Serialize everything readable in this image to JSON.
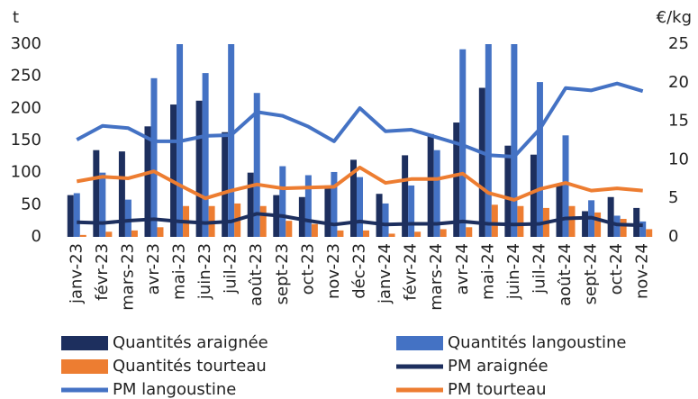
{
  "chart_data": {
    "type": "combo",
    "ylabel": "t",
    "y2label": "€/kg",
    "categories": [
      "janv-23",
      "févr-23",
      "mars-23",
      "avr-23",
      "mai-23",
      "juin-23",
      "juil-23",
      "août-23",
      "sept-23",
      "oct-23",
      "nov-23",
      "déc-23",
      "janv-24",
      "févr-24",
      "mars-24",
      "avr-24",
      "mai-24",
      "juin-24",
      "juil-24",
      "août-24",
      "sept-24",
      "oct-24",
      "nov-24"
    ],
    "ylim": [
      0,
      300
    ],
    "yticks": [
      0,
      50,
      100,
      150,
      200,
      250,
      300
    ],
    "y2lim": [
      0,
      25
    ],
    "y2ticks": [
      0,
      5,
      10,
      15,
      20,
      25
    ],
    "series": [
      {
        "name": "Quantités araignée",
        "type": "bar",
        "color": "#1d2f5e",
        "values": [
          65,
          135,
          133,
          172,
          206,
          212,
          163,
          100,
          65,
          62,
          80,
          120,
          67,
          127,
          160,
          178,
          232,
          142,
          128,
          80,
          40,
          62,
          45
        ]
      },
      {
        "name": "Quantités langoustine",
        "type": "bar",
        "color": "#4472c4",
        "values": [
          68,
          100,
          58,
          247,
          300,
          255,
          300,
          224,
          110,
          96,
          101,
          93,
          52,
          80,
          135,
          292,
          300,
          300,
          241,
          158,
          57,
          33,
          24
        ]
      },
      {
        "name": "Quantités tourteau",
        "type": "bar",
        "color": "#ed7d31",
        "values": [
          3,
          8,
          10,
          15,
          48,
          48,
          52,
          48,
          25,
          20,
          10,
          10,
          5,
          8,
          12,
          15,
          50,
          48,
          45,
          48,
          38,
          28,
          12
        ]
      },
      {
        "name": "PM araignée",
        "type": "line",
        "axis": "y2",
        "color": "#1d2f5e",
        "values": [
          1.9,
          1.8,
          2.1,
          2.3,
          2.0,
          1.8,
          2.0,
          3.0,
          2.7,
          2.1,
          1.6,
          2.0,
          1.6,
          1.7,
          1.7,
          2.0,
          1.7,
          1.6,
          1.7,
          2.4,
          2.5,
          1.6,
          1.5
        ]
      },
      {
        "name": "PM langoustine",
        "type": "line",
        "axis": "y2",
        "color": "#4472c4",
        "values": [
          12.6,
          14.4,
          14.1,
          12.4,
          12.4,
          13.1,
          13.2,
          16.2,
          15.7,
          14.3,
          12.4,
          16.7,
          13.7,
          13.9,
          12.9,
          11.9,
          10.6,
          10.4,
          14.0,
          19.3,
          19.0,
          19.9,
          18.9
        ]
      },
      {
        "name": "PM tourteau",
        "type": "line",
        "axis": "y2",
        "color": "#ed7d31",
        "values": [
          7.2,
          7.8,
          7.6,
          8.5,
          6.7,
          5.0,
          6.0,
          6.8,
          6.3,
          6.4,
          6.5,
          9.0,
          7.0,
          7.5,
          7.5,
          8.2,
          5.7,
          4.8,
          6.2,
          7.0,
          6.0,
          6.3,
          6.0
        ]
      }
    ]
  }
}
